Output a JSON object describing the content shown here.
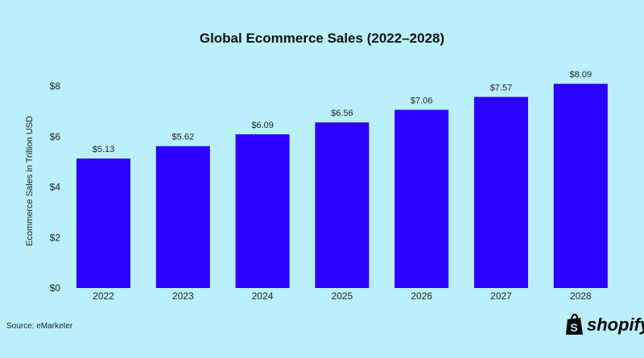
{
  "chart_data": {
    "type": "bar",
    "title": "Global Ecommerce Sales (2022–2028)",
    "xlabel": "",
    "ylabel": "Ecommerce Sales in Trillion USD",
    "categories": [
      "2022",
      "2023",
      "2024",
      "2025",
      "2026",
      "2027",
      "2028"
    ],
    "values": [
      5.13,
      5.62,
      6.09,
      6.56,
      7.06,
      7.57,
      8.09
    ],
    "data_labels": [
      "$5.13",
      "$5.62",
      "$6.09",
      "$6.56",
      "$7.06",
      "$7.57",
      "$8.09"
    ],
    "ylim": [
      0,
      8
    ],
    "yticks": [
      0,
      2,
      4,
      6,
      8
    ],
    "ytick_labels": [
      "$0",
      "$2",
      "$4",
      "$6",
      "$8"
    ],
    "grid": false,
    "legend": "none",
    "bar_color": "#2a00ff",
    "background_color": "#baf0fc"
  },
  "source": "Source: eMarketer",
  "logo": {
    "text": "shopify",
    "icon": "shopify-bag-icon"
  }
}
